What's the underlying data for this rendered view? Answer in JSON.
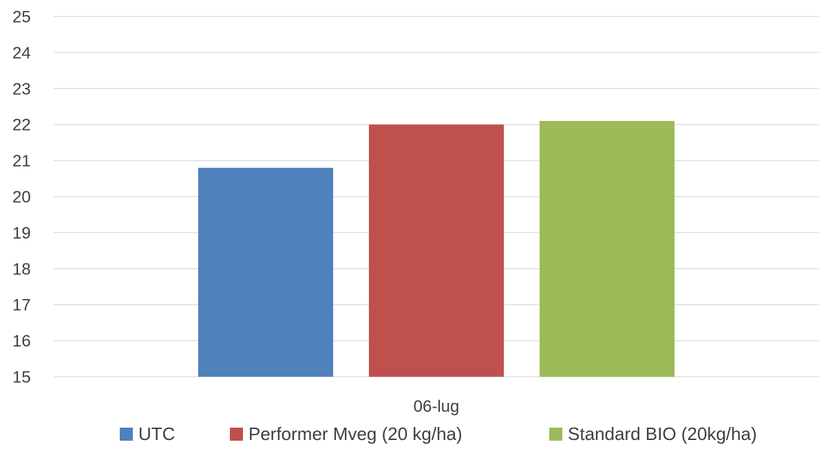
{
  "chart_data": {
    "type": "bar",
    "categories": [
      "06-lug"
    ],
    "series": [
      {
        "name": "UTC",
        "values": [
          20.8
        ],
        "color": "#4f81bd"
      },
      {
        "name": "Performer Mveg (20 kg/ha)",
        "values": [
          22.0
        ],
        "color": "#c0504d"
      },
      {
        "name": "Standard BIO (20kg/ha)",
        "values": [
          22.1
        ],
        "color": "#9bbb59"
      }
    ],
    "title": "",
    "xlabel": "",
    "ylabel": "",
    "ylim": [
      15,
      25
    ],
    "yticks": [
      "15",
      "16",
      "17",
      "18",
      "19",
      "20",
      "21",
      "22",
      "23",
      "24",
      "25"
    ],
    "grid": true,
    "legend_position": "bottom"
  }
}
